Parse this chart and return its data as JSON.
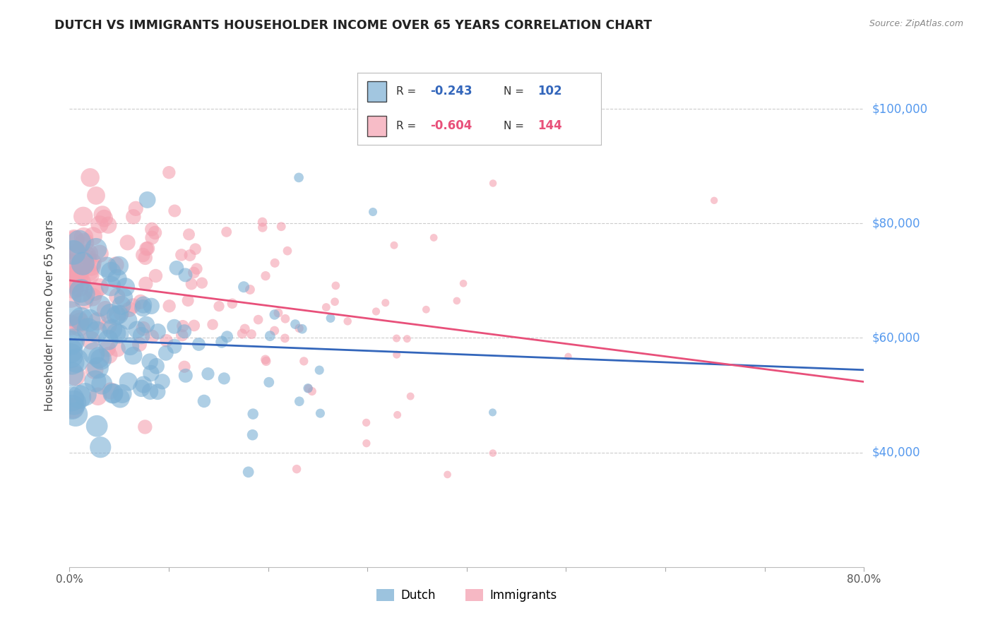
{
  "title": "DUTCH VS IMMIGRANTS HOUSEHOLDER INCOME OVER 65 YEARS CORRELATION CHART",
  "source": "Source: ZipAtlas.com",
  "ylabel": "Householder Income Over 65 years",
  "xlim": [
    0.0,
    0.8
  ],
  "ylim": [
    20000,
    108000
  ],
  "xtick_positions": [
    0.0,
    0.1,
    0.2,
    0.3,
    0.4,
    0.5,
    0.6,
    0.7,
    0.8
  ],
  "xticklabels": [
    "0.0%",
    "",
    "",
    "",
    "",
    "",
    "",
    "",
    "80.0%"
  ],
  "ytick_positions": [
    40000,
    60000,
    80000,
    100000
  ],
  "ytick_labels": [
    "$40,000",
    "$60,000",
    "$80,000",
    "$100,000"
  ],
  "legend_dutch_R": "-0.243",
  "legend_dutch_N": "102",
  "legend_immigrants_R": "-0.604",
  "legend_immigrants_N": "144",
  "dutch_color": "#7BAFD4",
  "immigrants_color": "#F4A0B0",
  "dutch_line_color": "#3366BB",
  "immigrants_line_color": "#E8507A",
  "ytick_color": "#5599EE",
  "background_color": "#FFFFFF",
  "grid_color": "#CCCCCC",
  "dutch_seed": 12,
  "immigrants_seed": 34,
  "dutch_intercept": 61500,
  "dutch_slope": -22000,
  "immigrants_intercept": 72000,
  "immigrants_slope": -42000
}
